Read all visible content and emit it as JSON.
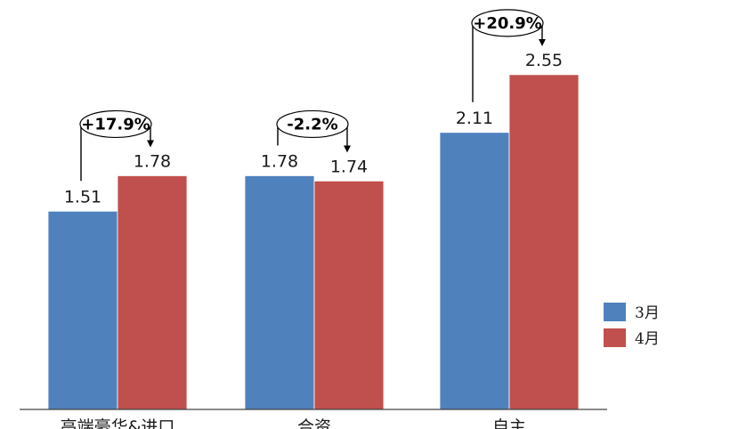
{
  "chart_data": {
    "type": "bar",
    "categories": [
      "高端豪华&进口",
      "合资",
      "自主"
    ],
    "series": [
      {
        "name": "3月",
        "values": [
          1.51,
          1.78,
          2.11
        ],
        "color": "#4f81bd"
      },
      {
        "name": "4月",
        "values": [
          1.78,
          1.74,
          2.55
        ],
        "color": "#c0504d"
      }
    ],
    "value_labels": [
      [
        "1.51",
        "1.78",
        "2.11"
      ],
      [
        "1.78",
        "1.74",
        "2.55"
      ]
    ],
    "changes": [
      "+17.9%",
      "-2.2%",
      "+20.9%"
    ],
    "ylim": [
      0,
      2.9
    ],
    "legend_position": "right",
    "grid": false
  }
}
